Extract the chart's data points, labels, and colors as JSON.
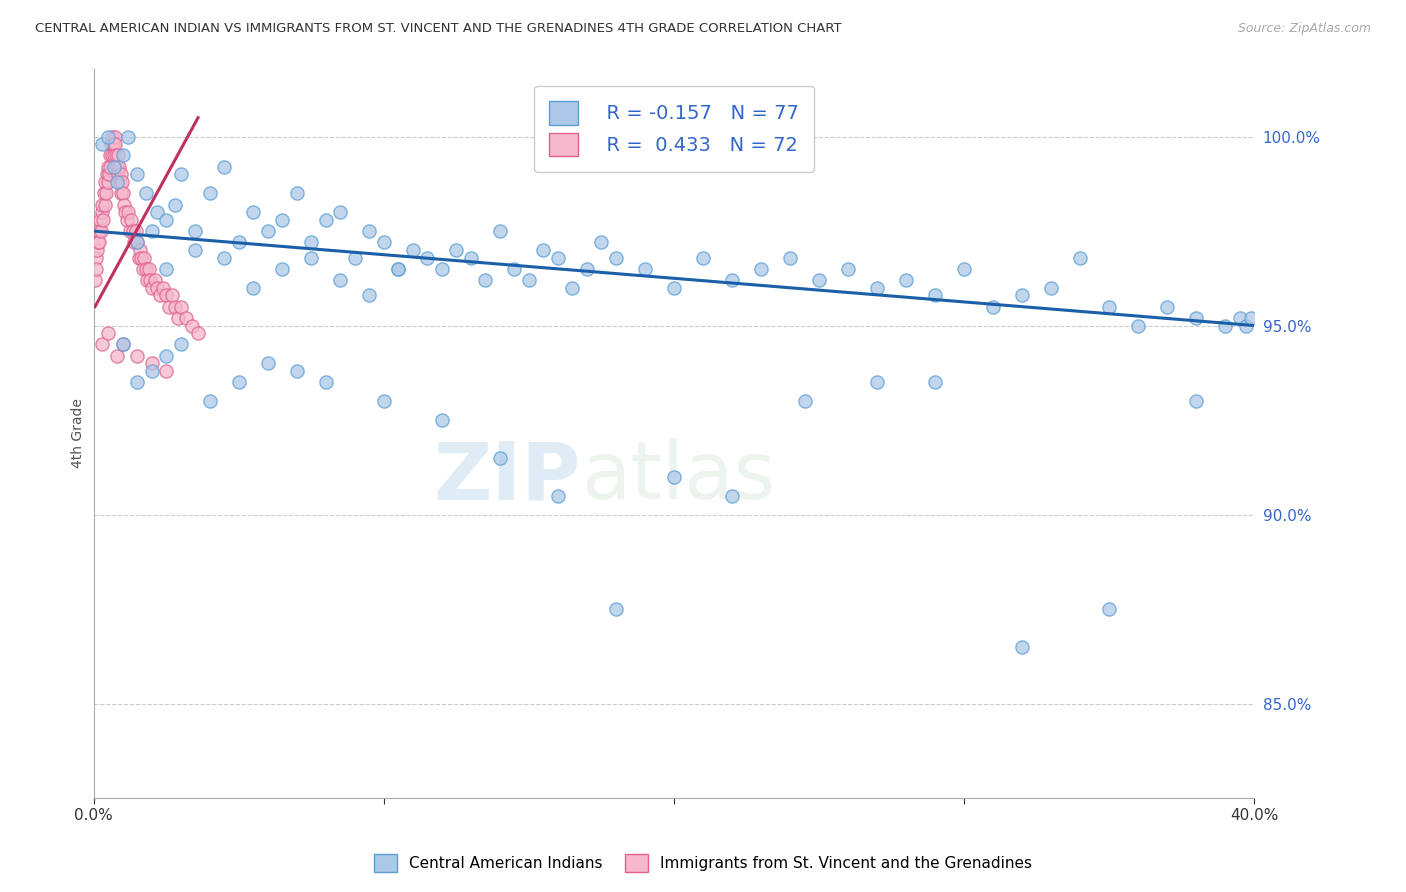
{
  "title": "CENTRAL AMERICAN INDIAN VS IMMIGRANTS FROM ST. VINCENT AND THE GRENADINES 4TH GRADE CORRELATION CHART",
  "source": "Source: ZipAtlas.com",
  "ylabel": "4th Grade",
  "yticks": [
    100.0,
    95.0,
    90.0,
    85.0
  ],
  "ytick_labels": [
    "100.0%",
    "95.0%",
    "90.0%",
    "85.0%"
  ],
  "xmin": 0.0,
  "xmax": 40.0,
  "ymin": 82.5,
  "ymax": 101.8,
  "blue_R": -0.157,
  "blue_N": 77,
  "pink_R": 0.433,
  "pink_N": 72,
  "blue_color": "#adc8e8",
  "blue_edge": "#5a9fd4",
  "pink_color": "#f5b8cc",
  "pink_edge": "#e06090",
  "trend_blue": "#1a5fa8",
  "trend_pink": "#c03060",
  "legend_label_blue": "Central American Indians",
  "legend_label_pink": "Immigrants from St. Vincent and the Grenadines",
  "watermark": "ZIPatlas",
  "blue_x": [
    0.3,
    0.5,
    0.7,
    0.8,
    1.0,
    1.2,
    1.5,
    1.8,
    2.0,
    2.2,
    2.5,
    2.8,
    3.0,
    3.5,
    4.0,
    4.5,
    5.0,
    5.5,
    6.0,
    6.5,
    7.0,
    7.5,
    8.0,
    8.5,
    9.0,
    9.5,
    10.0,
    10.5,
    11.0,
    11.5,
    12.0,
    12.5,
    13.0,
    13.5,
    14.0,
    14.5,
    15.0,
    15.5,
    16.0,
    16.5,
    17.0,
    17.5,
    18.0,
    19.0,
    20.0,
    21.0,
    22.0,
    23.0,
    24.0,
    25.0,
    26.0,
    27.0,
    28.0,
    29.0,
    30.0,
    31.0,
    32.0,
    33.0,
    34.0,
    35.0,
    36.0,
    37.0,
    38.0,
    39.0,
    39.5,
    39.7,
    39.9,
    1.5,
    2.5,
    3.5,
    4.5,
    5.5,
    6.5,
    7.5,
    8.5,
    9.5,
    10.5
  ],
  "blue_y": [
    99.8,
    100.0,
    99.2,
    98.8,
    99.5,
    100.0,
    99.0,
    98.5,
    97.5,
    98.0,
    97.8,
    98.2,
    99.0,
    97.5,
    98.5,
    99.2,
    97.2,
    98.0,
    97.5,
    97.8,
    98.5,
    97.2,
    97.8,
    98.0,
    96.8,
    97.5,
    97.2,
    96.5,
    97.0,
    96.8,
    96.5,
    97.0,
    96.8,
    96.2,
    97.5,
    96.5,
    96.2,
    97.0,
    96.8,
    96.0,
    96.5,
    97.2,
    96.8,
    96.5,
    96.0,
    96.8,
    96.2,
    96.5,
    96.8,
    96.2,
    96.5,
    96.0,
    96.2,
    95.8,
    96.5,
    95.5,
    95.8,
    96.0,
    96.8,
    95.5,
    95.0,
    95.5,
    95.2,
    95.0,
    95.2,
    95.0,
    95.2,
    97.2,
    96.5,
    97.0,
    96.8,
    96.0,
    96.5,
    96.8,
    96.2,
    95.8,
    96.5
  ],
  "blue_x2": [
    1.0,
    1.5,
    2.0,
    2.5,
    3.0,
    4.0,
    5.0,
    6.0,
    7.0,
    8.0,
    10.0,
    12.0,
    14.0,
    16.0,
    18.0,
    20.0,
    22.0,
    24.5,
    27.0,
    29.0,
    32.0,
    35.0,
    38.0
  ],
  "blue_y2": [
    94.5,
    93.5,
    93.8,
    94.2,
    94.5,
    93.0,
    93.5,
    94.0,
    93.8,
    93.5,
    93.0,
    92.5,
    91.5,
    90.5,
    87.5,
    91.0,
    90.5,
    93.0,
    93.5,
    93.5,
    86.5,
    87.5,
    93.0
  ],
  "pink_x": [
    0.05,
    0.08,
    0.1,
    0.12,
    0.15,
    0.18,
    0.2,
    0.22,
    0.25,
    0.28,
    0.3,
    0.33,
    0.35,
    0.38,
    0.4,
    0.42,
    0.45,
    0.48,
    0.5,
    0.52,
    0.55,
    0.58,
    0.6,
    0.63,
    0.65,
    0.68,
    0.7,
    0.73,
    0.75,
    0.78,
    0.8,
    0.83,
    0.85,
    0.88,
    0.9,
    0.93,
    0.95,
    0.98,
    1.0,
    1.05,
    1.1,
    1.15,
    1.2,
    1.25,
    1.3,
    1.35,
    1.4,
    1.45,
    1.5,
    1.55,
    1.6,
    1.65,
    1.7,
    1.75,
    1.8,
    1.85,
    1.9,
    1.95,
    2.0,
    2.1,
    2.2,
    2.3,
    2.4,
    2.5,
    2.6,
    2.7,
    2.8,
    2.9,
    3.0,
    3.2,
    3.4,
    3.6
  ],
  "pink_y": [
    96.2,
    96.8,
    96.5,
    97.0,
    97.2,
    97.5,
    97.2,
    97.8,
    97.5,
    98.0,
    98.2,
    97.8,
    98.5,
    98.2,
    98.8,
    98.5,
    99.0,
    98.8,
    99.2,
    99.0,
    99.5,
    99.2,
    99.8,
    99.5,
    100.0,
    99.8,
    99.5,
    100.0,
    99.8,
    99.5,
    99.2,
    99.5,
    99.0,
    99.2,
    98.8,
    99.0,
    98.5,
    98.8,
    98.5,
    98.2,
    98.0,
    97.8,
    98.0,
    97.5,
    97.8,
    97.5,
    97.2,
    97.5,
    97.2,
    96.8,
    97.0,
    96.8,
    96.5,
    96.8,
    96.5,
    96.2,
    96.5,
    96.2,
    96.0,
    96.2,
    96.0,
    95.8,
    96.0,
    95.8,
    95.5,
    95.8,
    95.5,
    95.2,
    95.5,
    95.2,
    95.0,
    94.8
  ],
  "pink_extra_x": [
    0.3,
    0.5,
    0.8,
    1.0,
    1.5,
    2.0,
    2.5
  ],
  "pink_extra_y": [
    94.5,
    94.8,
    94.2,
    94.5,
    94.2,
    94.0,
    93.8
  ],
  "blue_trend_x0": 0.0,
  "blue_trend_x1": 40.0,
  "blue_trend_y0": 97.5,
  "blue_trend_y1": 95.0,
  "pink_trend_x0": 0.05,
  "pink_trend_x1": 3.6,
  "pink_trend_y0": 95.5,
  "pink_trend_y1": 100.5
}
